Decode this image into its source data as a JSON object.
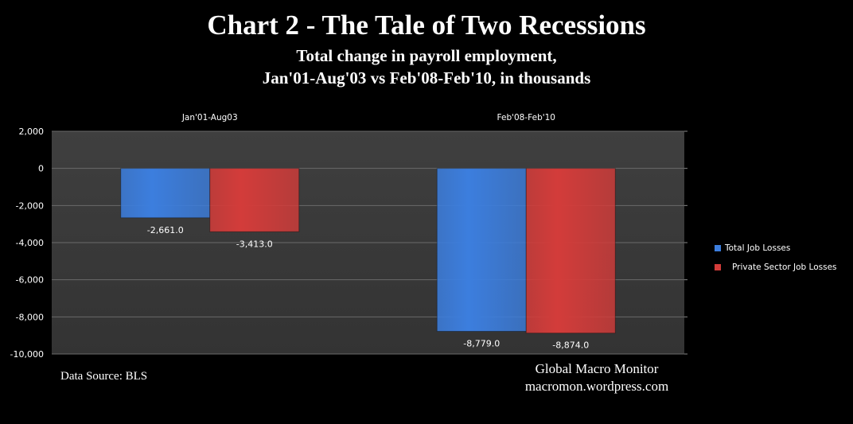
{
  "header": {
    "title": "Chart 2 - The Tale of Two Recessions",
    "subtitle_line1": "Total change in payroll employment,",
    "subtitle_line2": "Jan'01-Aug'03 vs Feb'08-Feb'10, in thousands"
  },
  "footer": {
    "source": "Data Source:  BLS",
    "brand_line1": "Global Macro Monitor",
    "brand_line2": "macromon.wordpress.com"
  },
  "colors": {
    "total": "#3c7ede",
    "private": "#d33c3a",
    "plot_background": "#3a3a3a",
    "gridline": "#6a6a6a"
  },
  "chart_data": {
    "type": "bar",
    "categories": [
      "Jan'01-Aug03",
      "Feb'08-Feb'10"
    ],
    "category_axis_position": "top",
    "series": [
      {
        "name": "Total Job Losses",
        "values": [
          -2661.0,
          -8779.0
        ],
        "labels": [
          "-2,661.0",
          "-8,779.0"
        ]
      },
      {
        "name": "Private Sector Job Losses",
        "values": [
          -3413.0,
          -8874.0
        ],
        "labels": [
          "-3,413.0",
          "-8,874.0"
        ]
      }
    ],
    "ylim": [
      -10000,
      2000
    ],
    "yticks": [
      2000,
      0,
      -2000,
      -4000,
      -6000,
      -8000,
      -10000
    ],
    "ytick_labels": [
      "2,000",
      "0",
      "-2,000",
      "-4,000",
      "-6,000",
      "-8,000",
      "-10,000"
    ],
    "grid": true,
    "legend_position": "right"
  }
}
